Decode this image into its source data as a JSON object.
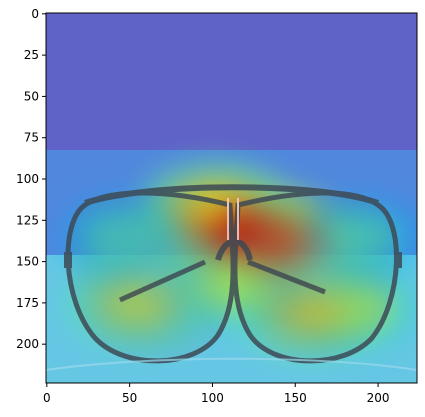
{
  "chart_data": {
    "type": "heatmap",
    "title": "",
    "xlabel": "",
    "ylabel": "",
    "image_content": "sunglasses with attention heatmap overlay",
    "colormap": "jet",
    "xlim": [
      -0.5,
      223.5
    ],
    "ylim": [
      223.5,
      -0.5
    ],
    "xticks": [
      0,
      50,
      100,
      150,
      200
    ],
    "yticks": [
      0,
      25,
      50,
      75,
      100,
      125,
      150,
      175,
      200
    ],
    "grid": false,
    "hotspots": [
      {
        "x": 112,
        "y": 130,
        "intensity": 1.0
      },
      {
        "x": 140,
        "y": 140,
        "intensity": 0.95
      },
      {
        "x": 100,
        "y": 118,
        "intensity": 0.75
      },
      {
        "x": 55,
        "y": 175,
        "intensity": 0.7
      },
      {
        "x": 160,
        "y": 180,
        "intensity": 0.75
      },
      {
        "x": 185,
        "y": 178,
        "intensity": 0.6
      },
      {
        "x": 112,
        "y": 165,
        "intensity": 0.6
      },
      {
        "x": 45,
        "y": 135,
        "intensity": 0.4
      },
      {
        "x": 190,
        "y": 135,
        "intensity": 0.4
      }
    ]
  }
}
